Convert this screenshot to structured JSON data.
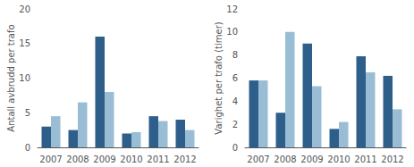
{
  "chart_data": [
    {
      "type": "bar",
      "y_label": "Antall avbrudd per trafo",
      "categories": [
        "2007",
        "2008",
        "2009",
        "2010",
        "2011",
        "2012"
      ],
      "series": [
        {
          "color": "#2E5F8A",
          "values": [
            3.0,
            2.5,
            16.0,
            2.0,
            4.5,
            4.0
          ]
        },
        {
          "color": "#9ABDD6",
          "values": [
            4.5,
            6.5,
            8.0,
            2.2,
            3.8,
            2.5
          ]
        }
      ],
      "ylim": [
        0,
        20
      ],
      "yticks": [
        0,
        5,
        10,
        15,
        20
      ],
      "grid": false
    },
    {
      "type": "bar",
      "y_label": "Varighet per trafo (timer)",
      "categories": [
        "2007",
        "2008",
        "2009",
        "2010",
        "2011",
        "2012"
      ],
      "series": [
        {
          "color": "#2E5F8A",
          "values": [
            5.8,
            3.0,
            9.0,
            1.6,
            7.9,
            6.2
          ]
        },
        {
          "color": "#9ABDD6",
          "values": [
            5.8,
            10.0,
            5.3,
            2.2,
            6.5,
            3.3
          ]
        }
      ],
      "ylim": [
        0,
        12
      ],
      "yticks": [
        0,
        2,
        4,
        6,
        8,
        10,
        12
      ],
      "grid": false
    }
  ]
}
